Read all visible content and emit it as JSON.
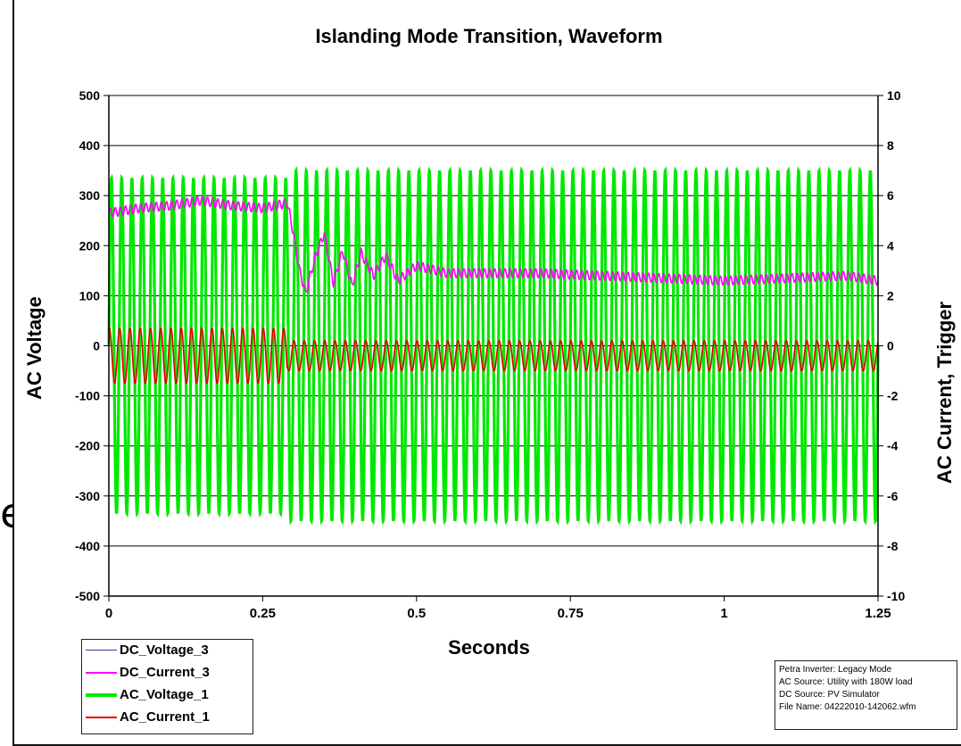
{
  "slide_text_fragment": "es",
  "chart_data": {
    "type": "line",
    "title": "Islanding Mode Transition, Waveform",
    "xlabel": "Seconds",
    "ylabel_left": "AC Voltage",
    "ylabel_right": "AC Current, Trigger",
    "xlim": [
      0,
      1.25
    ],
    "ylim_left": [
      -500,
      500
    ],
    "ylim_right": [
      -10,
      10
    ],
    "x_ticks": [
      "0",
      "0.25",
      "0.5",
      "0.75",
      "1",
      "1.25"
    ],
    "y_ticks_left": [
      "500",
      "400",
      "300",
      "200",
      "100",
      "0",
      "-100",
      "-200",
      "-300",
      "-400",
      "-500"
    ],
    "y_ticks_right": [
      "10",
      "8",
      "6",
      "4",
      "2",
      "0",
      "-2",
      "-4",
      "-6",
      "-8",
      "-10"
    ],
    "grid": "horizontal",
    "series": [
      {
        "name": "DC_Voltage_3",
        "color": "#3b3b9a",
        "axis": "left",
        "description_points": []
      },
      {
        "name": "DC_Current_3",
        "color": "#ff00ff",
        "axis": "right",
        "x": [
          0,
          0.05,
          0.1,
          0.15,
          0.2,
          0.25,
          0.29,
          0.3,
          0.31,
          0.32,
          0.335,
          0.35,
          0.365,
          0.38,
          0.395,
          0.41,
          0.43,
          0.45,
          0.47,
          0.5,
          0.55,
          0.6,
          0.7,
          0.8,
          0.9,
          1.0,
          1.1,
          1.2,
          1.25
        ],
        "values": [
          5.3,
          5.5,
          5.6,
          5.8,
          5.6,
          5.5,
          5.7,
          4.5,
          3.0,
          2.1,
          3.5,
          4.5,
          2.5,
          3.8,
          2.4,
          3.7,
          2.8,
          3.6,
          2.6,
          3.2,
          2.9,
          2.9,
          2.9,
          2.8,
          2.7,
          2.6,
          2.7,
          2.8,
          2.6
        ]
      },
      {
        "name": "AC_Voltage_1",
        "color": "#00e800",
        "axis": "left",
        "frequency_hz": 60,
        "amplitude_before": 335,
        "amplitude_after": 350,
        "transition_s": 0.29
      },
      {
        "name": "AC_Current_1",
        "color": "#e00000",
        "axis": "right",
        "frequency_hz": 60,
        "amplitude_before": 1.1,
        "amplitude_after": 0.6,
        "offset": -0.4,
        "transition_s": 0.29
      }
    ],
    "legend_position": "bottom-left"
  },
  "info_box": {
    "lines": [
      "Petra Inverter: Legacy Mode",
      "AC Source: Utility with 180W load",
      "DC Source: PV Simulator",
      "File Name: 04222010-142062.wfm"
    ]
  }
}
